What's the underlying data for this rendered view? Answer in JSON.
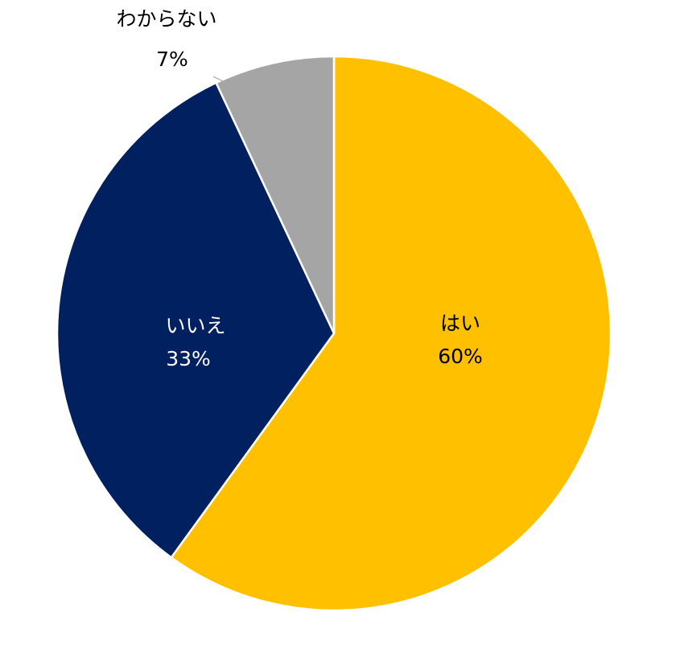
{
  "chart_data": {
    "type": "pie",
    "title": "",
    "slices": [
      {
        "label": "はい",
        "value": 60,
        "value_label": "60%",
        "color": "#FFC000",
        "text_color": "#000000"
      },
      {
        "label": "いいえ",
        "value": 33,
        "value_label": "33%",
        "color": "#002060",
        "text_color": "#FFFFFF"
      },
      {
        "label": "わからない",
        "value": 7,
        "value_label": "7%",
        "color": "#A5A5A5",
        "text_color": "#000000"
      }
    ],
    "start": "12 o'clock",
    "direction": "clockwise",
    "legend": "none",
    "label_style": "category name and percent on slice; leader line for the small slice"
  }
}
